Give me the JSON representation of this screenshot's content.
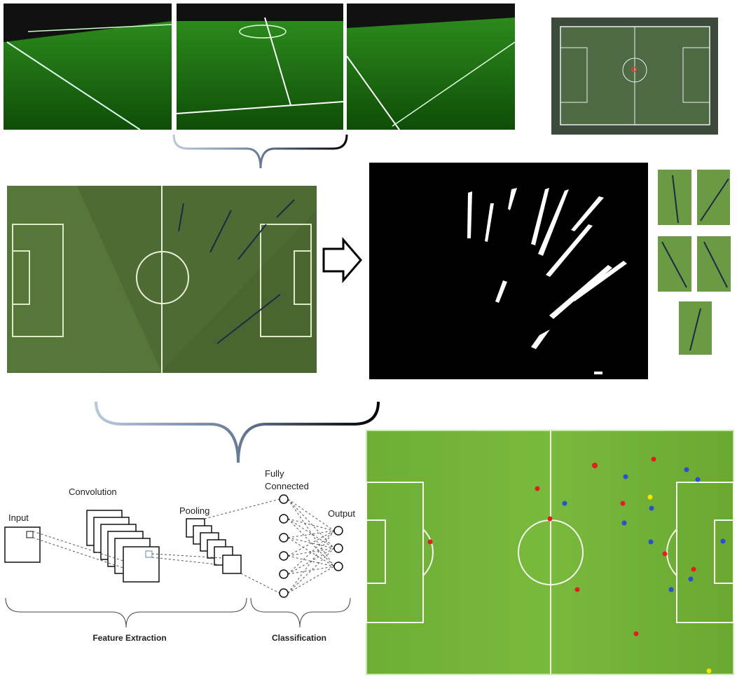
{
  "cnn": {
    "input": "Input",
    "convolution": "Convolution",
    "pooling": "Pooling",
    "fully_connected": [
      "Fully",
      "Connected"
    ],
    "output": "Output",
    "feature_extraction": "Feature Extraction",
    "classification": "Classification"
  }
}
